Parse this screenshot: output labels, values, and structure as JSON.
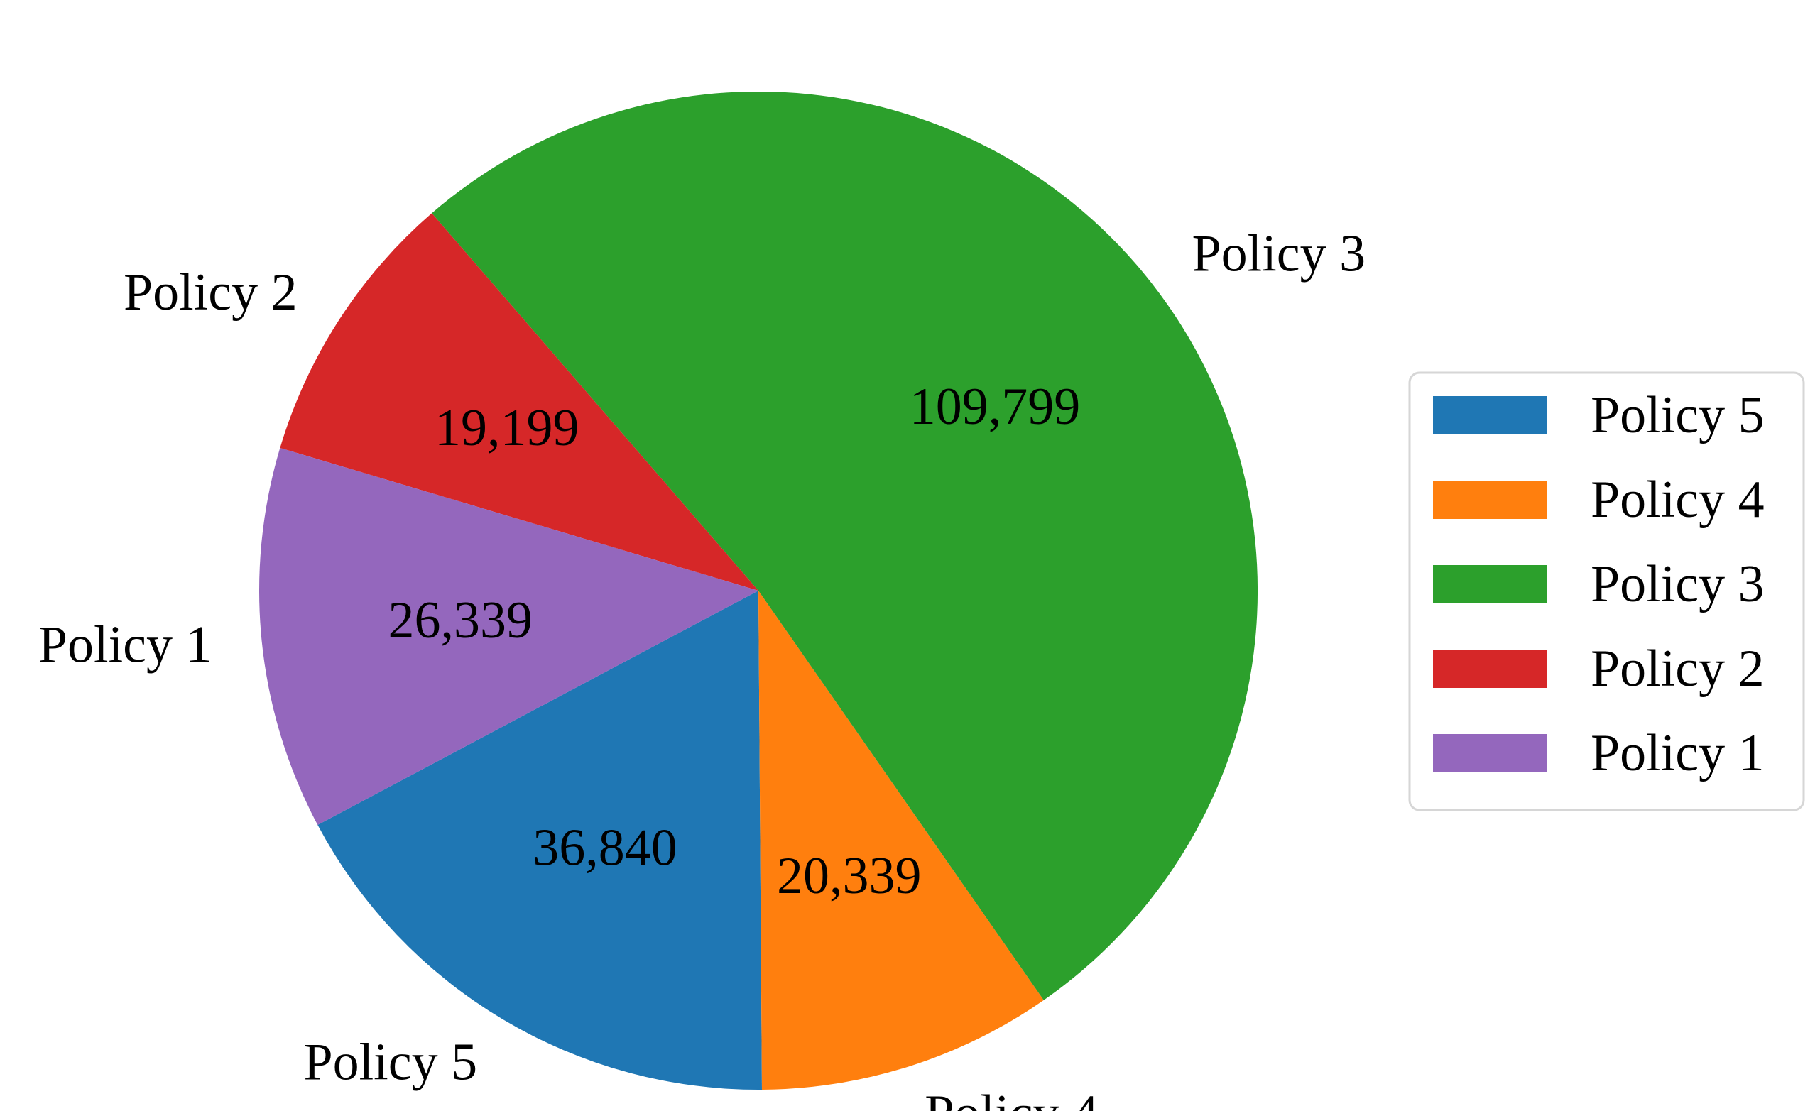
{
  "chart_data": {
    "type": "pie",
    "categories": [
      "Policy 5",
      "Policy 4",
      "Policy 3",
      "Policy 2",
      "Policy 1"
    ],
    "values": [
      36840,
      20339,
      109799,
      19199,
      26339
    ],
    "value_labels": [
      "36,840",
      "20,339",
      "109,799",
      "19,199",
      "26,339"
    ],
    "colors": [
      "#1f77b4",
      "#ff7f0e",
      "#2ca02c",
      "#d62728",
      "#9467bd"
    ],
    "title": "",
    "legend": {
      "placement": "right",
      "entries": [
        "Policy 5",
        "Policy 4",
        "Policy 3",
        "Policy 2",
        "Policy 1"
      ]
    }
  }
}
